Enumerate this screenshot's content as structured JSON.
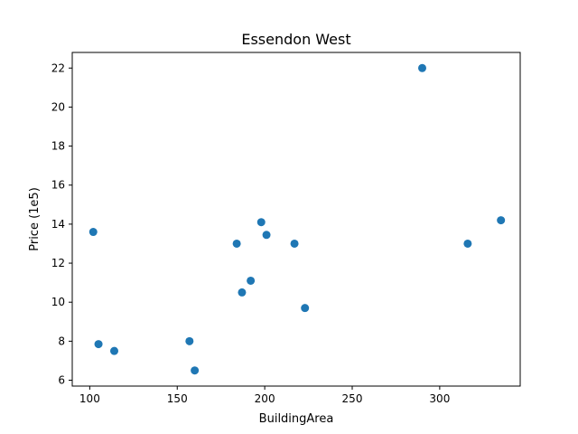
{
  "chart_data": {
    "type": "scatter",
    "title": "Essendon West",
    "xlabel": "BuildingArea",
    "ylabel": "Price (1e5)",
    "xlim": [
      90,
      346
    ],
    "ylim": [
      5.7,
      22.8
    ],
    "xticks": [
      100,
      150,
      200,
      250,
      300
    ],
    "yticks": [
      6,
      8,
      10,
      12,
      14,
      16,
      18,
      20,
      22
    ],
    "grid": false,
    "marker_color": "#1f77b4",
    "points": [
      {
        "x": 102,
        "y": 13.6
      },
      {
        "x": 105,
        "y": 7.85
      },
      {
        "x": 114,
        "y": 7.5
      },
      {
        "x": 157,
        "y": 8.0
      },
      {
        "x": 160,
        "y": 6.5
      },
      {
        "x": 184,
        "y": 13.0
      },
      {
        "x": 187,
        "y": 10.5
      },
      {
        "x": 192,
        "y": 11.1
      },
      {
        "x": 198,
        "y": 14.1
      },
      {
        "x": 201,
        "y": 13.45
      },
      {
        "x": 217,
        "y": 13.0
      },
      {
        "x": 223,
        "y": 9.7
      },
      {
        "x": 290,
        "y": 22.0
      },
      {
        "x": 316,
        "y": 13.0
      },
      {
        "x": 335,
        "y": 14.2
      }
    ]
  }
}
